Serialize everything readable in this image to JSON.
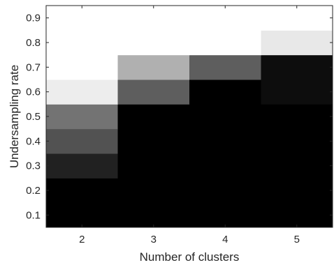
{
  "chart_data": {
    "type": "heatmap",
    "title": "",
    "xlabel": "Number of clusters",
    "ylabel": "Undersampling rate",
    "x": [
      2,
      3,
      4,
      5
    ],
    "y": [
      0.1,
      0.2,
      0.3,
      0.4,
      0.5,
      0.6,
      0.7,
      0.8,
      0.9
    ],
    "xlim": [
      1.5,
      5.5
    ],
    "ylim": [
      0.05,
      0.95
    ],
    "x_ticks": [
      "2",
      "3",
      "4",
      "5"
    ],
    "y_ticks": [
      "0.1",
      "0.2",
      "0.3",
      "0.4",
      "0.5",
      "0.6",
      "0.7",
      "0.8",
      "0.9"
    ],
    "colormap": "gray",
    "value_range": [
      0,
      1
    ],
    "values": [
      [
        0.0,
        0.0,
        0.0,
        0.0
      ],
      [
        0.0,
        0.0,
        0.0,
        0.0
      ],
      [
        0.13,
        0.0,
        0.0,
        0.0
      ],
      [
        0.32,
        0.0,
        0.0,
        0.0
      ],
      [
        0.45,
        0.0,
        0.0,
        0.0
      ],
      [
        0.93,
        0.37,
        0.0,
        0.05
      ],
      [
        1.0,
        0.69,
        0.37,
        0.05
      ],
      [
        1.0,
        1.0,
        1.0,
        0.91
      ],
      [
        1.0,
        1.0,
        1.0,
        1.0
      ]
    ],
    "grid": false,
    "legend": "none"
  }
}
